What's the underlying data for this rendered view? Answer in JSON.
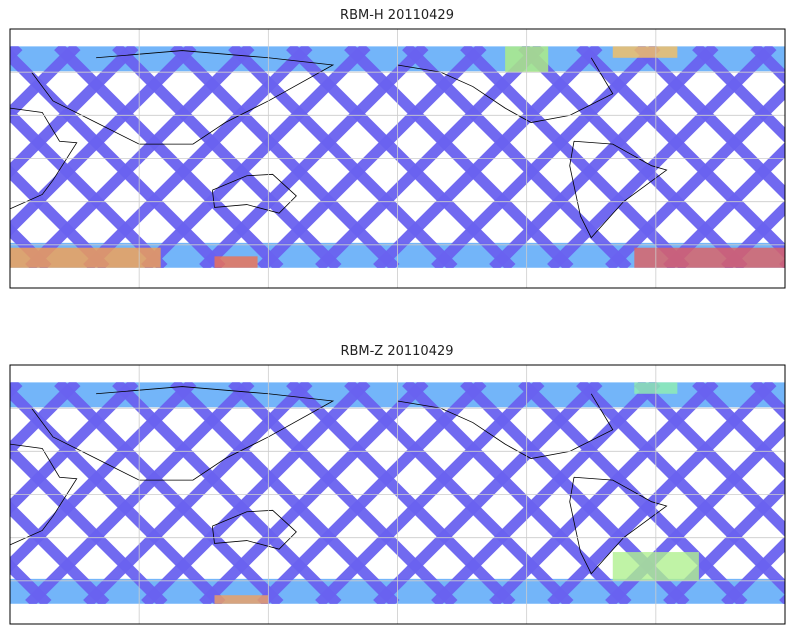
{
  "maps": [
    {
      "title": "RBM-H 20110429",
      "lon_range": [
        20,
        380
      ],
      "lat_range": [
        -90,
        90
      ],
      "grid_lon_step": 60,
      "grid_lat_step": 30,
      "data_lat_range": [
        -76,
        78
      ],
      "colormap": "jet",
      "hot_regions": [
        {
          "lon": [
            20,
            90
          ],
          "lat": [
            -76,
            -62
          ],
          "color": "#f5a050"
        },
        {
          "lon": [
            115,
            135
          ],
          "lat": [
            -76,
            -68
          ],
          "color": "#f07050"
        },
        {
          "lon": [
            310,
            380
          ],
          "lat": [
            -76,
            -62
          ],
          "color": "#e06060"
        },
        {
          "lon": [
            250,
            270
          ],
          "lat": [
            60,
            78
          ],
          "color": "#b0f080"
        },
        {
          "lon": [
            300,
            330
          ],
          "lat": [
            70,
            78
          ],
          "color": "#f8c060"
        }
      ]
    },
    {
      "title": "RBM-Z 20110429",
      "lon_range": [
        20,
        380
      ],
      "lat_range": [
        -90,
        90
      ],
      "grid_lon_step": 60,
      "grid_lat_step": 30,
      "data_lat_range": [
        -76,
        78
      ],
      "colormap": "jet",
      "hot_regions": [
        {
          "lon": [
            300,
            340
          ],
          "lat": [
            -60,
            -40
          ],
          "color": "#b0f090"
        },
        {
          "lon": [
            115,
            140
          ],
          "lat": [
            -76,
            -70
          ],
          "color": "#f0a060"
        },
        {
          "lon": [
            310,
            330
          ],
          "lat": [
            70,
            78
          ],
          "color": "#90f0b0"
        }
      ]
    }
  ],
  "colors": {
    "swath": "#6a62f0",
    "polar": "#5aa8f8",
    "grid": "#cccccc",
    "frame": "#000000"
  }
}
